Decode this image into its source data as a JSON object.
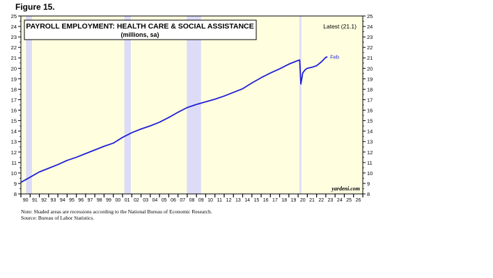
{
  "figure_label": "Figure 15.",
  "chart_data": {
    "type": "line",
    "title": "PAYROLL EMPLOYMENT: HEALTH CARE & SOCIAL ASSISTANCE",
    "subtitle": "(millions, sa)",
    "latest_label": "Latest (21.1)",
    "end_label": "Feb",
    "watermark": "yardeni.com",
    "ylim": [
      8,
      25
    ],
    "yticks": [
      8,
      9,
      10,
      11,
      12,
      13,
      14,
      15,
      16,
      17,
      18,
      19,
      20,
      21,
      22,
      23,
      24,
      25
    ],
    "xlim": [
      1990,
      2027
    ],
    "xtick_labels": [
      "90",
      "91",
      "92",
      "93",
      "94",
      "95",
      "96",
      "97",
      "98",
      "99",
      "00",
      "01",
      "02",
      "03",
      "04",
      "05",
      "06",
      "07",
      "08",
      "09",
      "10",
      "11",
      "12",
      "13",
      "14",
      "15",
      "16",
      "17",
      "18",
      "19",
      "20",
      "21",
      "22",
      "23",
      "24",
      "25",
      "26"
    ],
    "recessions": [
      [
        1990.55,
        1991.2
      ],
      [
        2001.2,
        2001.9
      ],
      [
        2007.95,
        2009.5
      ],
      [
        2020.15,
        2020.35
      ]
    ],
    "series": [
      {
        "color": "#1f1fd6",
        "x": [
          1990.0,
          1991.0,
          1992.0,
          1993.0,
          1994.0,
          1995.0,
          1996.0,
          1997.0,
          1998.0,
          1999.0,
          2000.0,
          2001.0,
          2002.0,
          2003.0,
          2004.0,
          2005.0,
          2006.0,
          2007.0,
          2008.0,
          2009.0,
          2010.0,
          2011.0,
          2012.0,
          2013.0,
          2014.0,
          2015.0,
          2016.0,
          2017.0,
          2018.0,
          2019.0,
          2020.0,
          2020.17,
          2020.3,
          2020.5,
          2020.75,
          2021.0,
          2021.5,
          2022.0,
          2022.5,
          2023.0,
          2023.17
        ],
        "y": [
          9.1,
          9.6,
          10.1,
          10.45,
          10.8,
          11.2,
          11.5,
          11.85,
          12.2,
          12.55,
          12.85,
          13.4,
          13.85,
          14.2,
          14.5,
          14.85,
          15.3,
          15.8,
          16.25,
          16.55,
          16.8,
          17.05,
          17.35,
          17.7,
          18.05,
          18.6,
          19.1,
          19.55,
          19.95,
          20.4,
          20.75,
          20.8,
          18.5,
          19.55,
          19.85,
          20.0,
          20.1,
          20.25,
          20.6,
          21.05,
          21.1
        ]
      }
    ]
  },
  "notes": {
    "line1": "Note: Shaded areas are recessions according to the National Bureau of Economic Research.",
    "line2": "Source: Bureau of Labor Statistics."
  }
}
